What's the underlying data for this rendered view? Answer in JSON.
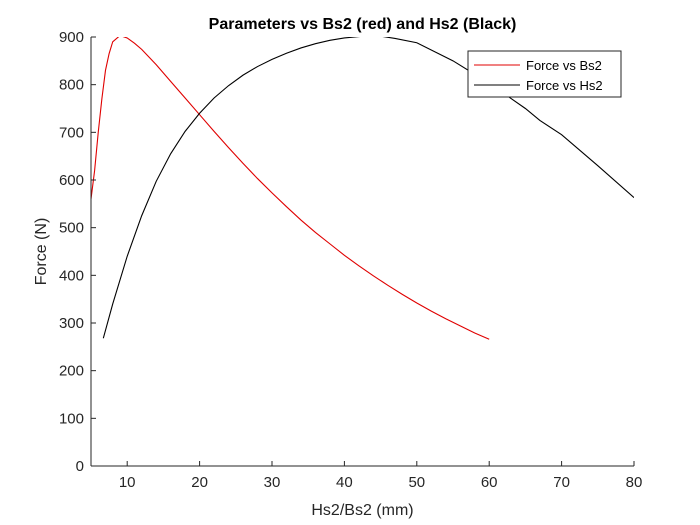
{
  "chart_data": {
    "type": "line",
    "title": "Parameters vs Bs2 (red) and Hs2 (Black)",
    "xlabel": "Hs2/Bs2 (mm)",
    "ylabel": "Force (N)",
    "xlim": [
      5,
      80
    ],
    "ylim": [
      0,
      900
    ],
    "xticks": [
      10,
      20,
      30,
      40,
      50,
      60,
      70,
      80
    ],
    "yticks": [
      0,
      100,
      200,
      300,
      400,
      500,
      600,
      700,
      800,
      900
    ],
    "grid": false,
    "legend_position": "top-right",
    "series": [
      {
        "name": "Force vs Bs2",
        "color": "#e00000",
        "x": [
          5,
          5.5,
          6,
          6.5,
          7,
          7.5,
          8,
          9,
          10,
          11,
          12,
          13,
          14,
          16,
          18,
          20,
          22,
          24,
          26,
          28,
          30,
          32,
          34,
          36,
          38,
          40,
          42,
          44,
          46,
          48,
          50,
          52,
          54,
          56,
          58,
          60
        ],
        "y": [
          560,
          620,
          700,
          770,
          830,
          865,
          890,
          903,
          898,
          887,
          874,
          858,
          842,
          807,
          772,
          737,
          702,
          668,
          635,
          603,
          573,
          544,
          516,
          490,
          466,
          442,
          420,
          399,
          379,
          360,
          342,
          325,
          309,
          294,
          279,
          266
        ]
      },
      {
        "name": "Force vs Hs2",
        "color": "#000000",
        "x": [
          6.7,
          8,
          10,
          12,
          14,
          16,
          18,
          20,
          22,
          24,
          26,
          28,
          30,
          32,
          34,
          36,
          38,
          40,
          42,
          44.5,
          47,
          50,
          55,
          60,
          65,
          67,
          70,
          75,
          80
        ],
        "y": [
          268,
          340,
          440,
          525,
          597,
          655,
          702,
          740,
          772,
          798,
          820,
          838,
          853,
          866,
          877,
          886,
          893,
          898,
          901,
          903,
          897,
          888,
          850,
          803,
          750,
          725,
          695,
          630,
          563
        ]
      }
    ]
  }
}
